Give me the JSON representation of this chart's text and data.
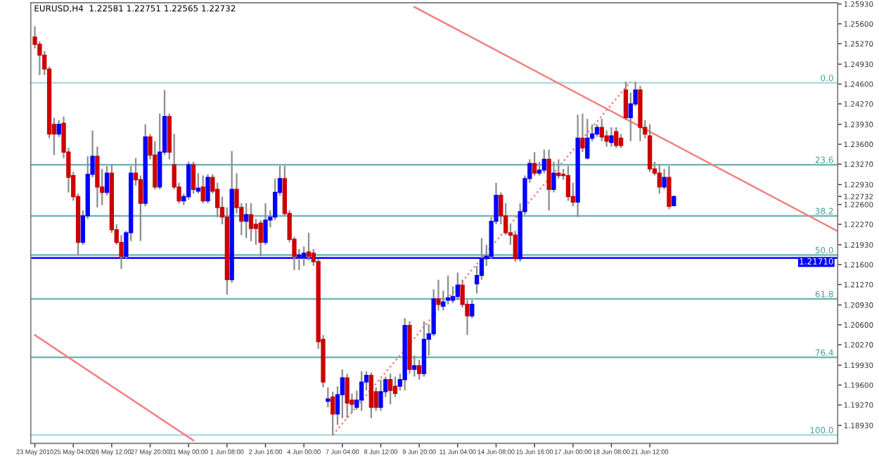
{
  "chart_data": {
    "type": "candlestick",
    "title": "EURUSD,H4  1.22581 1.22751 1.22565 1.22732",
    "categories": [
      "23 May 2010",
      null,
      null,
      null,
      null,
      null,
      null,
      null,
      "25 May 04:00",
      null,
      null,
      null,
      null,
      null,
      null,
      null,
      "26 May 12:00",
      null,
      null,
      null,
      null,
      null,
      null,
      null,
      "27 May 20:00",
      null,
      null,
      null,
      null,
      null,
      null,
      null,
      "31 May 00:00",
      null,
      null,
      null,
      null,
      null,
      null,
      null,
      "1 Jun 08:00",
      null,
      null,
      null,
      null,
      null,
      null,
      null,
      "2 Jun 16:00",
      null,
      null,
      null,
      null,
      null,
      null,
      null,
      "4 Jun 00:00",
      null,
      null,
      null,
      null,
      null,
      null,
      null,
      "7 Jun 04:00",
      null,
      null,
      null,
      null,
      null,
      null,
      null,
      "8 Jun 12:00",
      null,
      null,
      null,
      null,
      null,
      null,
      null,
      "9 Jun 20:00",
      null,
      null,
      null,
      null,
      null,
      null,
      null,
      "11 Jun 04:00",
      null,
      null,
      null,
      null,
      null,
      null,
      null,
      "14 Jun 08:00",
      null,
      null,
      null,
      null,
      null,
      null,
      null,
      "15 Jun 16:00",
      null,
      null,
      null,
      null,
      null,
      null,
      null,
      "17 Jun 00:00",
      null,
      null,
      null,
      null,
      null,
      null,
      null,
      "18 Jun 08:00",
      null,
      null,
      null,
      null,
      null,
      null,
      null,
      "21 Jun 12:00",
      null,
      null,
      null,
      null,
      null,
      null,
      null,
      null,
      null,
      null,
      null,
      null,
      null,
      null,
      null,
      null,
      null,
      null,
      null,
      null,
      null,
      null,
      null,
      null,
      null,
      null,
      null,
      null,
      null,
      null,
      null,
      null,
      null,
      null,
      null,
      null,
      null,
      null,
      null
    ],
    "ohlc": [
      [
        1.2538,
        1.2556,
        1.2519,
        1.2526
      ],
      [
        1.2526,
        1.2531,
        1.2475,
        1.2508
      ],
      [
        1.2508,
        1.2515,
        1.2475,
        1.2485
      ],
      [
        1.2485,
        1.2489,
        1.237,
        1.2377
      ],
      [
        1.2393,
        1.2404,
        1.2342,
        1.2377
      ],
      [
        1.2377,
        1.24,
        1.2372,
        1.2393
      ],
      [
        1.2395,
        1.2406,
        1.2337,
        1.2347
      ],
      [
        1.2347,
        1.2354,
        1.228,
        1.2305
      ],
      [
        1.2308,
        1.2314,
        1.2266,
        1.2273
      ],
      [
        1.2273,
        1.2278,
        1.2176,
        1.2197
      ],
      [
        1.2197,
        1.225,
        1.2193,
        1.2241
      ],
      [
        1.2241,
        1.234,
        1.2236,
        1.231
      ],
      [
        1.231,
        1.2383,
        1.2305,
        1.234
      ],
      [
        1.234,
        1.2356,
        1.2255,
        1.2289
      ],
      [
        1.2289,
        1.2319,
        1.2259,
        1.228
      ],
      [
        1.228,
        1.2324,
        1.2275,
        1.2312
      ],
      [
        1.2312,
        1.2326,
        1.2213,
        1.2218
      ],
      [
        1.2218,
        1.2227,
        1.2193,
        1.2197
      ],
      [
        1.2197,
        1.2209,
        1.2153,
        1.2174
      ],
      [
        1.2174,
        1.2216,
        1.217,
        1.2213
      ],
      [
        1.2213,
        1.2324,
        1.2199,
        1.2312
      ],
      [
        1.2312,
        1.2337,
        1.2291,
        1.2301
      ],
      [
        1.2301,
        1.2308,
        1.2199,
        1.2262
      ],
      [
        1.2262,
        1.2393,
        1.2257,
        1.2372
      ],
      [
        1.2372,
        1.2377,
        1.2335,
        1.2342
      ],
      [
        1.2342,
        1.2365,
        1.2285,
        1.2289
      ],
      [
        1.2289,
        1.2411,
        1.2285,
        1.2347
      ],
      [
        1.2347,
        1.245,
        1.2342,
        1.2406
      ],
      [
        1.2406,
        1.2411,
        1.2335,
        1.2347
      ],
      [
        1.2326,
        1.2377,
        1.2285,
        1.2289
      ],
      [
        1.2289,
        1.2296,
        1.2262,
        1.2266
      ],
      [
        1.2266,
        1.2278,
        1.2259,
        1.2273
      ],
      [
        1.2273,
        1.2331,
        1.2268,
        1.2326
      ],
      [
        1.2326,
        1.2331,
        1.2278,
        1.2285
      ],
      [
        1.2282,
        1.2312,
        1.2278,
        1.2287
      ],
      [
        1.2289,
        1.2308,
        1.2262,
        1.2266
      ],
      [
        1.2266,
        1.231,
        1.2262,
        1.2305
      ],
      [
        1.2305,
        1.231,
        1.2278,
        1.2282
      ],
      [
        1.2285,
        1.2296,
        1.2239,
        1.2255
      ],
      [
        1.2255,
        1.2273,
        1.2227,
        1.2239
      ],
      [
        1.2239,
        1.2255,
        1.211,
        1.2135
      ],
      [
        1.2135,
        1.2349,
        1.213,
        1.2285
      ],
      [
        1.2285,
        1.2312,
        1.2245,
        1.2255
      ],
      [
        1.2255,
        1.2262,
        1.2209,
        1.2232
      ],
      [
        1.2232,
        1.2262,
        1.2204,
        1.2243
      ],
      [
        1.2243,
        1.2262,
        1.2199,
        1.222
      ],
      [
        1.2227,
        1.2236,
        1.2193,
        1.222
      ],
      [
        1.2229,
        1.2234,
        1.2174,
        1.2197
      ],
      [
        1.2197,
        1.2262,
        1.2193,
        1.2234
      ],
      [
        1.2234,
        1.225,
        1.2222,
        1.2239
      ],
      [
        1.2239,
        1.2303,
        1.2234,
        1.228
      ],
      [
        1.228,
        1.2324,
        1.2275,
        1.2303
      ],
      [
        1.2303,
        1.2324,
        1.2241,
        1.2245
      ],
      [
        1.2245,
        1.225,
        1.2197,
        1.2202
      ],
      [
        1.2202,
        1.2206,
        1.2151,
        1.2174
      ],
      [
        1.2172,
        1.2186,
        1.2151,
        1.2176
      ],
      [
        1.2172,
        1.219,
        1.2158,
        1.2179
      ],
      [
        1.2181,
        1.2213,
        1.2167,
        1.2174
      ],
      [
        1.2179,
        1.2186,
        1.2158,
        1.2165
      ],
      [
        1.2165,
        1.217,
        1.202,
        1.2032
      ],
      [
        1.2036,
        1.2043,
        1.1956,
        1.1965
      ],
      [
        1.1933,
        1.1956,
        1.1923,
        1.1937
      ],
      [
        1.194,
        1.1949,
        1.1877,
        1.1912
      ],
      [
        1.1912,
        1.1958,
        1.1894,
        1.1944
      ],
      [
        1.1944,
        1.1986,
        1.1905,
        1.1972
      ],
      [
        1.1972,
        1.1979,
        1.1905,
        1.193
      ],
      [
        1.1935,
        1.1946,
        1.1914,
        1.1928
      ],
      [
        1.1923,
        1.1951,
        1.1919,
        1.1935
      ],
      [
        1.1935,
        1.1983,
        1.1917,
        1.1965
      ],
      [
        1.1965,
        1.1983,
        1.1951,
        1.1976
      ],
      [
        1.1976,
        1.1981,
        1.1905,
        1.1923
      ],
      [
        1.1949,
        1.1956,
        1.1917,
        1.1923
      ],
      [
        1.1923,
        1.1969,
        1.1917,
        1.1949
      ],
      [
        1.1949,
        1.1974,
        1.194,
        1.1969
      ],
      [
        1.1969,
        1.1979,
        1.1928,
        1.1951
      ],
      [
        1.1958,
        1.1974,
        1.194,
        1.1946
      ],
      [
        1.1958,
        1.1979,
        1.1951,
        1.1969
      ],
      [
        1.1969,
        1.2071,
        1.1951,
        1.2059
      ],
      [
        1.2059,
        1.2066,
        1.1979,
        1.1986
      ],
      [
        1.1986,
        1.2009,
        1.1974,
        1.1992
      ],
      [
        1.1992,
        1.2002,
        1.1969,
        1.1979
      ],
      [
        1.1979,
        1.2066,
        1.1974,
        1.2036
      ],
      [
        1.2036,
        1.2061,
        1.2009,
        1.2045
      ],
      [
        1.2045,
        1.2119,
        1.2041,
        1.2103
      ],
      [
        1.2103,
        1.2135,
        1.2087,
        1.2094
      ],
      [
        1.2091,
        1.2117,
        1.2084,
        1.2098
      ],
      [
        1.2101,
        1.2142,
        1.2094,
        1.2105
      ],
      [
        1.2101,
        1.2124,
        1.2096,
        1.2107
      ],
      [
        1.2107,
        1.2147,
        1.2101,
        1.2126
      ],
      [
        1.2126,
        1.2135,
        1.2089,
        1.2094
      ],
      [
        1.2094,
        1.2101,
        1.2043,
        1.2075
      ],
      [
        1.2075,
        1.2101,
        1.2071,
        1.2094
      ],
      [
        1.2128,
        1.2158,
        1.2112,
        1.2142
      ],
      [
        1.2142,
        1.2204,
        1.2135,
        1.217
      ],
      [
        1.217,
        1.2193,
        1.2158,
        1.2174
      ],
      [
        1.2174,
        1.2239,
        1.217,
        1.2232
      ],
      [
        1.2232,
        1.2296,
        1.2227,
        1.2275
      ],
      [
        1.2275,
        1.228,
        1.2227,
        1.2241
      ],
      [
        1.2241,
        1.2262,
        1.2209,
        1.2213
      ],
      [
        1.2213,
        1.2227,
        1.2193,
        1.2209
      ],
      [
        1.2209,
        1.2216,
        1.2165,
        1.217
      ],
      [
        1.217,
        1.2262,
        1.2165,
        1.2248
      ],
      [
        1.2248,
        1.2308,
        1.2243,
        1.2303
      ],
      [
        1.2303,
        1.2335,
        1.2296,
        1.2328
      ],
      [
        1.2328,
        1.2347,
        1.2308,
        1.2312
      ],
      [
        1.2312,
        1.2331,
        1.2308,
        1.2317
      ],
      [
        1.2317,
        1.2351,
        1.2312,
        1.2335
      ],
      [
        1.2335,
        1.2351,
        1.225,
        1.2285
      ],
      [
        1.2285,
        1.2331,
        1.228,
        1.2312
      ],
      [
        1.2312,
        1.2335,
        1.2303,
        1.2308
      ],
      [
        1.231,
        1.2319,
        1.2301,
        1.2308
      ],
      [
        1.2308,
        1.2324,
        1.2266,
        1.2273
      ],
      [
        1.2273,
        1.2296,
        1.2257,
        1.2264
      ],
      [
        1.2264,
        1.2409,
        1.2239,
        1.237
      ],
      [
        1.237,
        1.2411,
        1.2347,
        1.2354
      ],
      [
        1.2337,
        1.2402,
        1.2335,
        1.237
      ],
      [
        1.237,
        1.2393,
        1.2365,
        1.2377
      ],
      [
        1.2377,
        1.2393,
        1.2372,
        1.2388
      ],
      [
        1.2388,
        1.2402,
        1.2365,
        1.2372
      ],
      [
        1.2374,
        1.2383,
        1.2356,
        1.2365
      ],
      [
        1.2363,
        1.2388,
        1.2356,
        1.2374
      ],
      [
        1.2381,
        1.2388,
        1.2354,
        1.2358
      ],
      [
        1.237,
        1.2377,
        1.2354,
        1.2358
      ],
      [
        1.245,
        1.2464,
        1.24,
        1.2404
      ],
      [
        1.2404,
        1.2446,
        1.2365,
        1.2427
      ],
      [
        1.2427,
        1.2464,
        1.2423,
        1.245
      ],
      [
        1.245,
        1.2457,
        1.2365,
        1.2388
      ],
      [
        1.2388,
        1.24,
        1.237,
        1.2377
      ],
      [
        1.2374,
        1.2393,
        1.2314,
        1.2319
      ],
      [
        1.2319,
        1.2331,
        1.2308,
        1.2312
      ],
      [
        1.2312,
        1.2326,
        1.2278,
        1.2289
      ],
      [
        1.2289,
        1.2319,
        1.2285,
        1.2305
      ],
      [
        1.2305,
        1.2324,
        1.2252,
        1.2257
      ],
      [
        1.22581,
        1.22751,
        1.22565,
        1.22732
      ],
      null,
      null,
      null,
      null,
      null,
      null,
      null,
      null,
      null,
      null,
      null,
      null,
      null,
      null,
      null,
      null,
      null,
      null,
      null,
      null,
      null,
      null,
      null,
      null,
      null,
      null,
      null,
      null,
      null,
      null,
      null,
      null,
      null,
      null
    ],
    "colors": [
      "#cc0000",
      "#cc0000",
      "#cc0000",
      "#cc0000",
      "#cc0000",
      "#0000ff",
      "#cc0000",
      "#cc0000",
      "#cc0000",
      "#cc0000",
      "#0000ff",
      "#0000ff",
      "#0000ff",
      "#cc0000",
      "#cc0000",
      "#0000ff",
      "#cc0000",
      "#cc0000",
      "#cc0000",
      "#0000ff",
      "#0000ff",
      "#cc0000",
      "#cc0000",
      "#0000ff",
      "#cc0000",
      "#cc0000",
      "#0000ff",
      "#0000ff",
      "#cc0000",
      "#cc0000",
      "#cc0000",
      "#0000ff",
      "#0000ff",
      "#cc0000",
      "#0000ff",
      "#cc0000",
      "#0000ff",
      "#cc0000",
      "#cc0000",
      "#cc0000",
      "#cc0000",
      "#0000ff",
      "#cc0000",
      "#cc0000",
      "#0000ff",
      "#cc0000",
      "#cc0000",
      "#cc0000",
      "#0000ff",
      "#0000ff",
      "#0000ff",
      "#0000ff",
      "#cc0000",
      "#cc0000",
      "#cc0000",
      "#0000ff",
      "#0000ff",
      "#cc0000",
      "#cc0000",
      "#cc0000",
      "#cc0000",
      "#0000ff",
      "#cc0000",
      "#0000ff",
      "#0000ff",
      "#cc0000",
      "#cc0000",
      "#0000ff",
      "#0000ff",
      "#0000ff",
      "#cc0000",
      "#cc0000",
      "#0000ff",
      "#0000ff",
      "#cc0000",
      "#cc0000",
      "#0000ff",
      "#0000ff",
      "#cc0000",
      "#0000ff",
      "#cc0000",
      "#0000ff",
      "#0000ff",
      "#0000ff",
      "#cc0000",
      "#0000ff",
      "#0000ff",
      "#0000ff",
      "#0000ff",
      "#cc0000",
      "#cc0000",
      "#0000ff",
      "#0000ff",
      "#0000ff",
      "#0000ff",
      "#0000ff",
      "#0000ff",
      "#cc0000",
      "#cc0000",
      "#cc0000",
      "#cc0000",
      "#0000ff",
      "#0000ff",
      "#0000ff",
      "#cc0000",
      "#0000ff",
      "#0000ff",
      "#cc0000",
      "#0000ff",
      "#cc0000",
      "#cc0000",
      "#cc0000",
      "#cc0000",
      "#0000ff",
      "#cc0000",
      "#0000ff",
      "#0000ff",
      "#0000ff",
      "#cc0000",
      "#cc0000",
      "#0000ff",
      "#cc0000",
      "#cc0000",
      "#cc0000",
      "#0000ff",
      "#0000ff",
      "#cc0000",
      "#cc0000",
      "#cc0000",
      "#cc0000",
      "#cc0000",
      "#0000ff",
      "#cc0000",
      "#0000ff",
      null,
      null,
      null,
      null,
      null,
      null,
      null,
      null,
      null,
      null,
      null,
      null,
      null,
      null,
      null,
      null,
      null,
      null,
      null,
      null,
      null,
      null,
      null,
      null,
      null,
      null,
      null,
      null,
      null,
      null,
      null,
      null,
      null,
      null
    ],
    "series": [
      {
        "type": "line",
        "color": "#f08080",
        "line_style": "solid",
        "values": [
          null,
          null,
          null,
          null,
          null,
          null,
          null,
          null,
          null,
          null,
          null,
          null,
          null,
          null,
          null,
          null,
          null,
          null,
          null,
          null,
          null,
          null,
          null,
          null,
          null,
          null,
          null,
          null,
          null,
          null,
          null,
          null,
          null,
          null,
          null,
          null,
          null,
          null,
          null,
          null,
          null,
          null,
          null,
          null,
          null,
          null,
          null,
          null,
          null,
          null,
          null,
          null,
          null,
          null,
          null,
          null,
          null,
          null,
          null,
          null,
          null,
          null,
          null,
          null,
          null,
          null,
          null,
          null,
          null,
          null,
          null,
          null,
          null,
          null,
          null,
          null,
          null,
          null,
          null,
          1.2588,
          null,
          null,
          null,
          null,
          null,
          null,
          null,
          null,
          null,
          null,
          null,
          null,
          null,
          null,
          null,
          null,
          null,
          null,
          null,
          null,
          null,
          null,
          null,
          null,
          null,
          null,
          null,
          null,
          null,
          null,
          null,
          null,
          null,
          null,
          null,
          null,
          null,
          null,
          null,
          null,
          null,
          null,
          null,
          null,
          null,
          null,
          null,
          null,
          null,
          null,
          null,
          null,
          null,
          null,
          null,
          null,
          null,
          null,
          null,
          null,
          null,
          null,
          null,
          null,
          null,
          null,
          null,
          null,
          null,
          null,
          null,
          null,
          null,
          null,
          null,
          null,
          null,
          null,
          null,
          null,
          null,
          null,
          null,
          null,
          null,
          null,
          null,
          1.2216
        ]
      },
      {
        "type": "line",
        "color": "#f08080",
        "line_style": "solid",
        "values": [
          1.2043,
          null,
          null,
          null,
          null,
          null,
          null,
          null,
          null,
          null,
          null,
          null,
          null,
          null,
          null,
          null,
          null,
          null,
          null,
          null,
          null,
          null,
          null,
          null,
          null,
          null,
          null,
          null,
          null,
          null,
          null,
          null,
          null,
          1.1868,
          null,
          null,
          null,
          null,
          null,
          null,
          null,
          null,
          null,
          null,
          null,
          null,
          null,
          null,
          null,
          null,
          null,
          null,
          null,
          null,
          null,
          null,
          null,
          null,
          null,
          null,
          null,
          null,
          null,
          null,
          null,
          null,
          null,
          null,
          null,
          null,
          null,
          null,
          null,
          null,
          null,
          null,
          null,
          null,
          null,
          null,
          null,
          null,
          null,
          null,
          null,
          null,
          null,
          null,
          null,
          null,
          null,
          null,
          null,
          null,
          null,
          null,
          null,
          null,
          null,
          null,
          null,
          null,
          null,
          null,
          null,
          null,
          null,
          null,
          null,
          null,
          null,
          null,
          null,
          null,
          null,
          null,
          null,
          null,
          null,
          null,
          null,
          null,
          null,
          null,
          null,
          null,
          null,
          null,
          null,
          null,
          null,
          null,
          null,
          null,
          null,
          null,
          null,
          null,
          null,
          null,
          null,
          null,
          null,
          null,
          null,
          null,
          null,
          null,
          null,
          null,
          null,
          null,
          null,
          null,
          null,
          null,
          null,
          null,
          null,
          null,
          null,
          null,
          null,
          null,
          null,
          null,
          null,
          null
        ]
      },
      {
        "type": "line",
        "color": "#f08080",
        "line_style": "dotted",
        "values": [
          null,
          null,
          null,
          null,
          null,
          null,
          null,
          null,
          null,
          null,
          null,
          null,
          null,
          null,
          null,
          null,
          null,
          null,
          null,
          null,
          null,
          null,
          null,
          null,
          null,
          null,
          null,
          null,
          null,
          null,
          null,
          null,
          null,
          null,
          null,
          null,
          null,
          null,
          null,
          null,
          null,
          null,
          null,
          null,
          null,
          null,
          null,
          null,
          null,
          null,
          null,
          null,
          null,
          null,
          null,
          null,
          null,
          null,
          null,
          null,
          null,
          null,
          1.1877,
          null,
          null,
          null,
          null,
          null,
          null,
          null,
          null,
          null,
          null,
          null,
          null,
          null,
          null,
          null,
          null,
          null,
          null,
          null,
          null,
          null,
          null,
          null,
          null,
          null,
          null,
          null,
          null,
          null,
          null,
          null,
          null,
          null,
          null,
          null,
          null,
          null,
          null,
          null,
          null,
          null,
          null,
          null,
          null,
          null,
          null,
          null,
          null,
          null,
          null,
          null,
          null,
          null,
          null,
          null,
          null,
          null,
          null,
          null,
          null,
          null,
          1.2464,
          null,
          null,
          null,
          null,
          null,
          null,
          null,
          null,
          null,
          null,
          null,
          null,
          null,
          null,
          null,
          null,
          null,
          null,
          null,
          null,
          null,
          null,
          null,
          null,
          null,
          null,
          null,
          null,
          null,
          null,
          null,
          null,
          null,
          null,
          null,
          null,
          null,
          null,
          null,
          null,
          null,
          null,
          null
        ]
      }
    ],
    "ylim": [
      1.1863,
      1.2595
    ],
    "yticks": [
      {
        "value": 1.2593,
        "label": "1.25930"
      },
      {
        "value": 1.256,
        "label": "1.25600"
      },
      {
        "value": 1.2527,
        "label": "1.25270"
      },
      {
        "value": 1.2493,
        "label": "1.24930"
      },
      {
        "value": 1.246,
        "label": "1.24600"
      },
      {
        "value": 1.2427,
        "label": "1.24270"
      },
      {
        "value": 1.2393,
        "label": "1.23930"
      },
      {
        "value": 1.236,
        "label": "1.23600"
      },
      {
        "value": 1.2327,
        "label": "1.23270"
      },
      {
        "value": 1.2293,
        "label": "1.22930"
      },
      {
        "value": 1.22732,
        "label": "1.22732"
      },
      {
        "value": 1.226,
        "label": "1.22600"
      },
      {
        "value": 1.2227,
        "label": "1.22270"
      },
      {
        "value": 1.2193,
        "label": "1.21930"
      },
      {
        "value": 1.216,
        "label": "1.21600"
      },
      {
        "value": 1.2127,
        "label": "1.21270"
      },
      {
        "value": 1.2093,
        "label": "1.20930"
      },
      {
        "value": 1.206,
        "label": "1.20600"
      },
      {
        "value": 1.2027,
        "label": "1.20270"
      },
      {
        "value": 1.1993,
        "label": "1.19930"
      },
      {
        "value": 1.196,
        "label": "1.19600"
      },
      {
        "value": 1.1927,
        "label": "1.19270"
      },
      {
        "value": 1.1893,
        "label": "1.18930"
      }
    ],
    "ref_lines": [
      {
        "axis": "y",
        "value": 1.2462,
        "color": "#b0dce0"
      },
      {
        "axis": "y",
        "value": 1.2326,
        "color": "#70b8b8"
      },
      {
        "axis": "y",
        "value": 1.2241,
        "color": "#70b8b8"
      },
      {
        "axis": "y",
        "value": 1.2176,
        "color": "#70b8b8"
      },
      {
        "axis": "y",
        "value": 1.2103,
        "color": "#70b8b8"
      },
      {
        "axis": "y",
        "value": 1.2006,
        "color": "#70b8b8"
      },
      {
        "axis": "y",
        "value": 1.1877,
        "color": "#b0dce0"
      },
      {
        "axis": "y",
        "value": 1.2171,
        "label": "1.21710",
        "color": "#0000ff"
      }
    ],
    "annotations": [
      {
        "text": "0.0",
        "y": 1.2462
      },
      {
        "text": "23.6",
        "y": 1.2326
      },
      {
        "text": "38.2",
        "y": 1.2241
      },
      {
        "text": "50.0",
        "y": 1.2176
      },
      {
        "text": "61.8",
        "y": 1.2103
      },
      {
        "text": "76.4",
        "y": 1.2006
      },
      {
        "text": "100.0",
        "y": 1.1877
      }
    ],
    "grid": false
  }
}
